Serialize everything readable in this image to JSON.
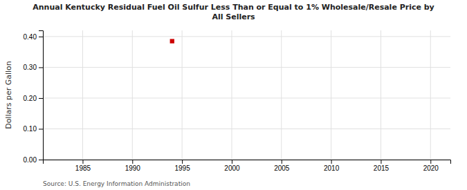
{
  "chart_data": {
    "type": "scatter",
    "title": "Annual Kentucky Residual Fuel Oil Sulfur Less Than or Equal to 1% Wholesale/Resale Price by\nAll Sellers",
    "ylabel": "Dollars per Gallon",
    "annotations": [
      "Source: U.S. Energy Information Administration"
    ],
    "x": [
      1994
    ],
    "values": [
      0.385
    ],
    "color": "#cc0000",
    "marker": "square",
    "xlim": [
      1981,
      2022
    ],
    "xticks": [
      1985,
      1990,
      1995,
      2000,
      2005,
      2010,
      2015,
      2020
    ],
    "ylim": [
      0.0,
      0.42
    ],
    "yticks": [
      {
        "value": 0.0,
        "label": "0.00"
      },
      {
        "value": 0.1,
        "label": "0.10"
      },
      {
        "value": 0.2,
        "label": "0.20"
      },
      {
        "value": 0.3,
        "label": "0.30"
      },
      {
        "value": 0.4,
        "label": "0.40"
      }
    ],
    "grid": true
  }
}
